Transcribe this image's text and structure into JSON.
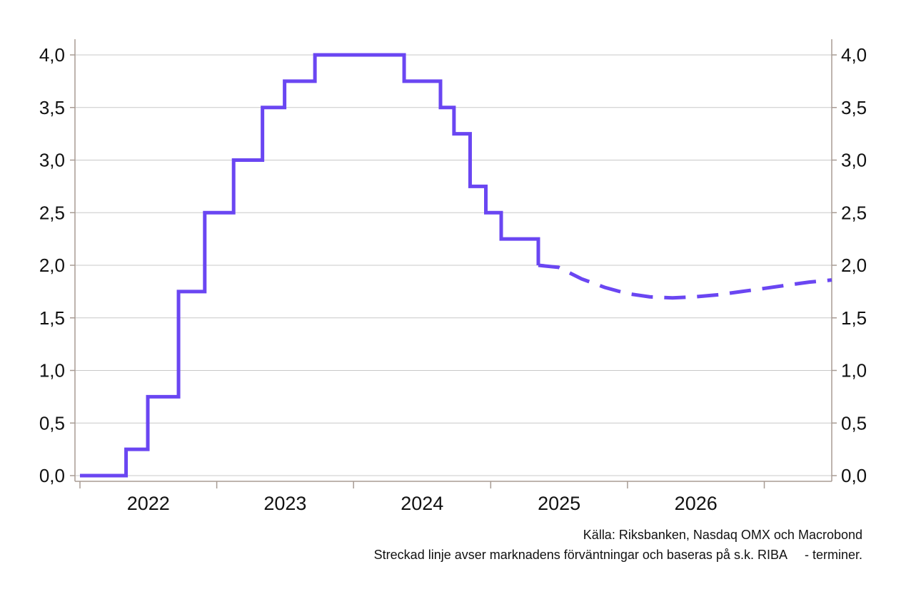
{
  "chart_data": {
    "type": "line",
    "title": "",
    "xlabel": "",
    "ylabel": "",
    "ylim": [
      0,
      4
    ],
    "xlim": [
      "2022-01-01",
      "2027-06-30"
    ],
    "grid": true,
    "y_ticks": [
      "0,0",
      "0,5",
      "1,0",
      "1,5",
      "2,0",
      "2,5",
      "3,0",
      "3,5",
      "4,0"
    ],
    "x_ticks": [
      "2022",
      "2023",
      "2024",
      "2025",
      "2026"
    ],
    "colors": {
      "line": "#6a46f2",
      "grid": "#c8c8c8",
      "axis": "#a89c94"
    },
    "series": [
      {
        "style": "step",
        "x": [
          "2022-01-01",
          "2022-05-04",
          "2022-07-01",
          "2022-09-21",
          "2022-11-30",
          "2023-02-15",
          "2023-05-03",
          "2023-07-01",
          "2023-09-20",
          "2024-05-15",
          "2024-08-20",
          "2024-09-25",
          "2024-11-07",
          "2024-12-19",
          "2025-01-29",
          "2025-05-08"
        ],
        "values": [
          0.0,
          0.25,
          0.75,
          1.75,
          2.5,
          3.0,
          3.5,
          3.75,
          4.0,
          3.75,
          3.5,
          3.25,
          2.75,
          2.5,
          2.25,
          2.0
        ]
      },
      {
        "style": "dashed",
        "x": [
          "2025-05-08",
          "2025-07-01",
          "2025-09-01",
          "2025-11-01",
          "2026-01-01",
          "2026-03-01",
          "2026-05-01",
          "2026-07-01",
          "2026-09-01",
          "2026-11-01",
          "2027-01-01",
          "2027-03-01",
          "2027-05-01",
          "2027-06-30"
        ],
        "values": [
          2.0,
          1.98,
          1.87,
          1.79,
          1.73,
          1.7,
          1.69,
          1.7,
          1.72,
          1.75,
          1.78,
          1.81,
          1.84,
          1.86
        ]
      }
    ]
  },
  "source": {
    "line1": "Källa: Riksbanken, Nasdaq OMX och Macrobond",
    "line2": "Streckad linje avser marknadens förväntningar och baseras på s.k. RIBA     - terminer."
  }
}
